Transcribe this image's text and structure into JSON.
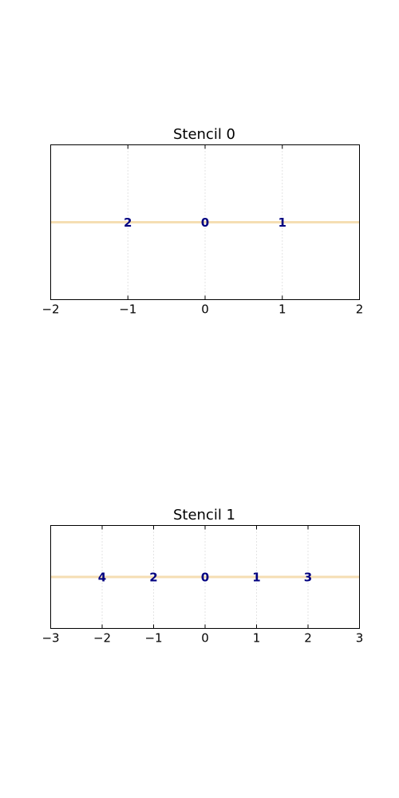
{
  "chart_data": [
    {
      "type": "scatter",
      "title": "Stencil 0",
      "xlim": [
        -2,
        2
      ],
      "xticks": [
        "−2",
        "−1",
        "0",
        "1",
        "2"
      ],
      "xtick_values": [
        -2,
        -1,
        0,
        1,
        2
      ],
      "y_ticks_visible": false,
      "grid": "vertical dotted",
      "baseline_y": 0,
      "points": [
        {
          "x": -1,
          "label": "2"
        },
        {
          "x": 0,
          "label": "0"
        },
        {
          "x": 1,
          "label": "1"
        }
      ]
    },
    {
      "type": "scatter",
      "title": "Stencil 1",
      "xlim": [
        -3,
        3
      ],
      "xticks": [
        "−3",
        "−2",
        "−1",
        "0",
        "1",
        "2",
        "3"
      ],
      "xtick_values": [
        -3,
        -2,
        -1,
        0,
        1,
        2,
        3
      ],
      "y_ticks_visible": false,
      "grid": "vertical dotted",
      "baseline_y": 0,
      "points": [
        {
          "x": -2,
          "label": "4"
        },
        {
          "x": -1,
          "label": "2"
        },
        {
          "x": 0,
          "label": "0"
        },
        {
          "x": 1,
          "label": "1"
        },
        {
          "x": 2,
          "label": "3"
        }
      ]
    }
  ],
  "colors": {
    "baseline": "#f5deb3",
    "point_label": "#000080",
    "grid": "#c8c8c8",
    "frame": "#000000"
  }
}
